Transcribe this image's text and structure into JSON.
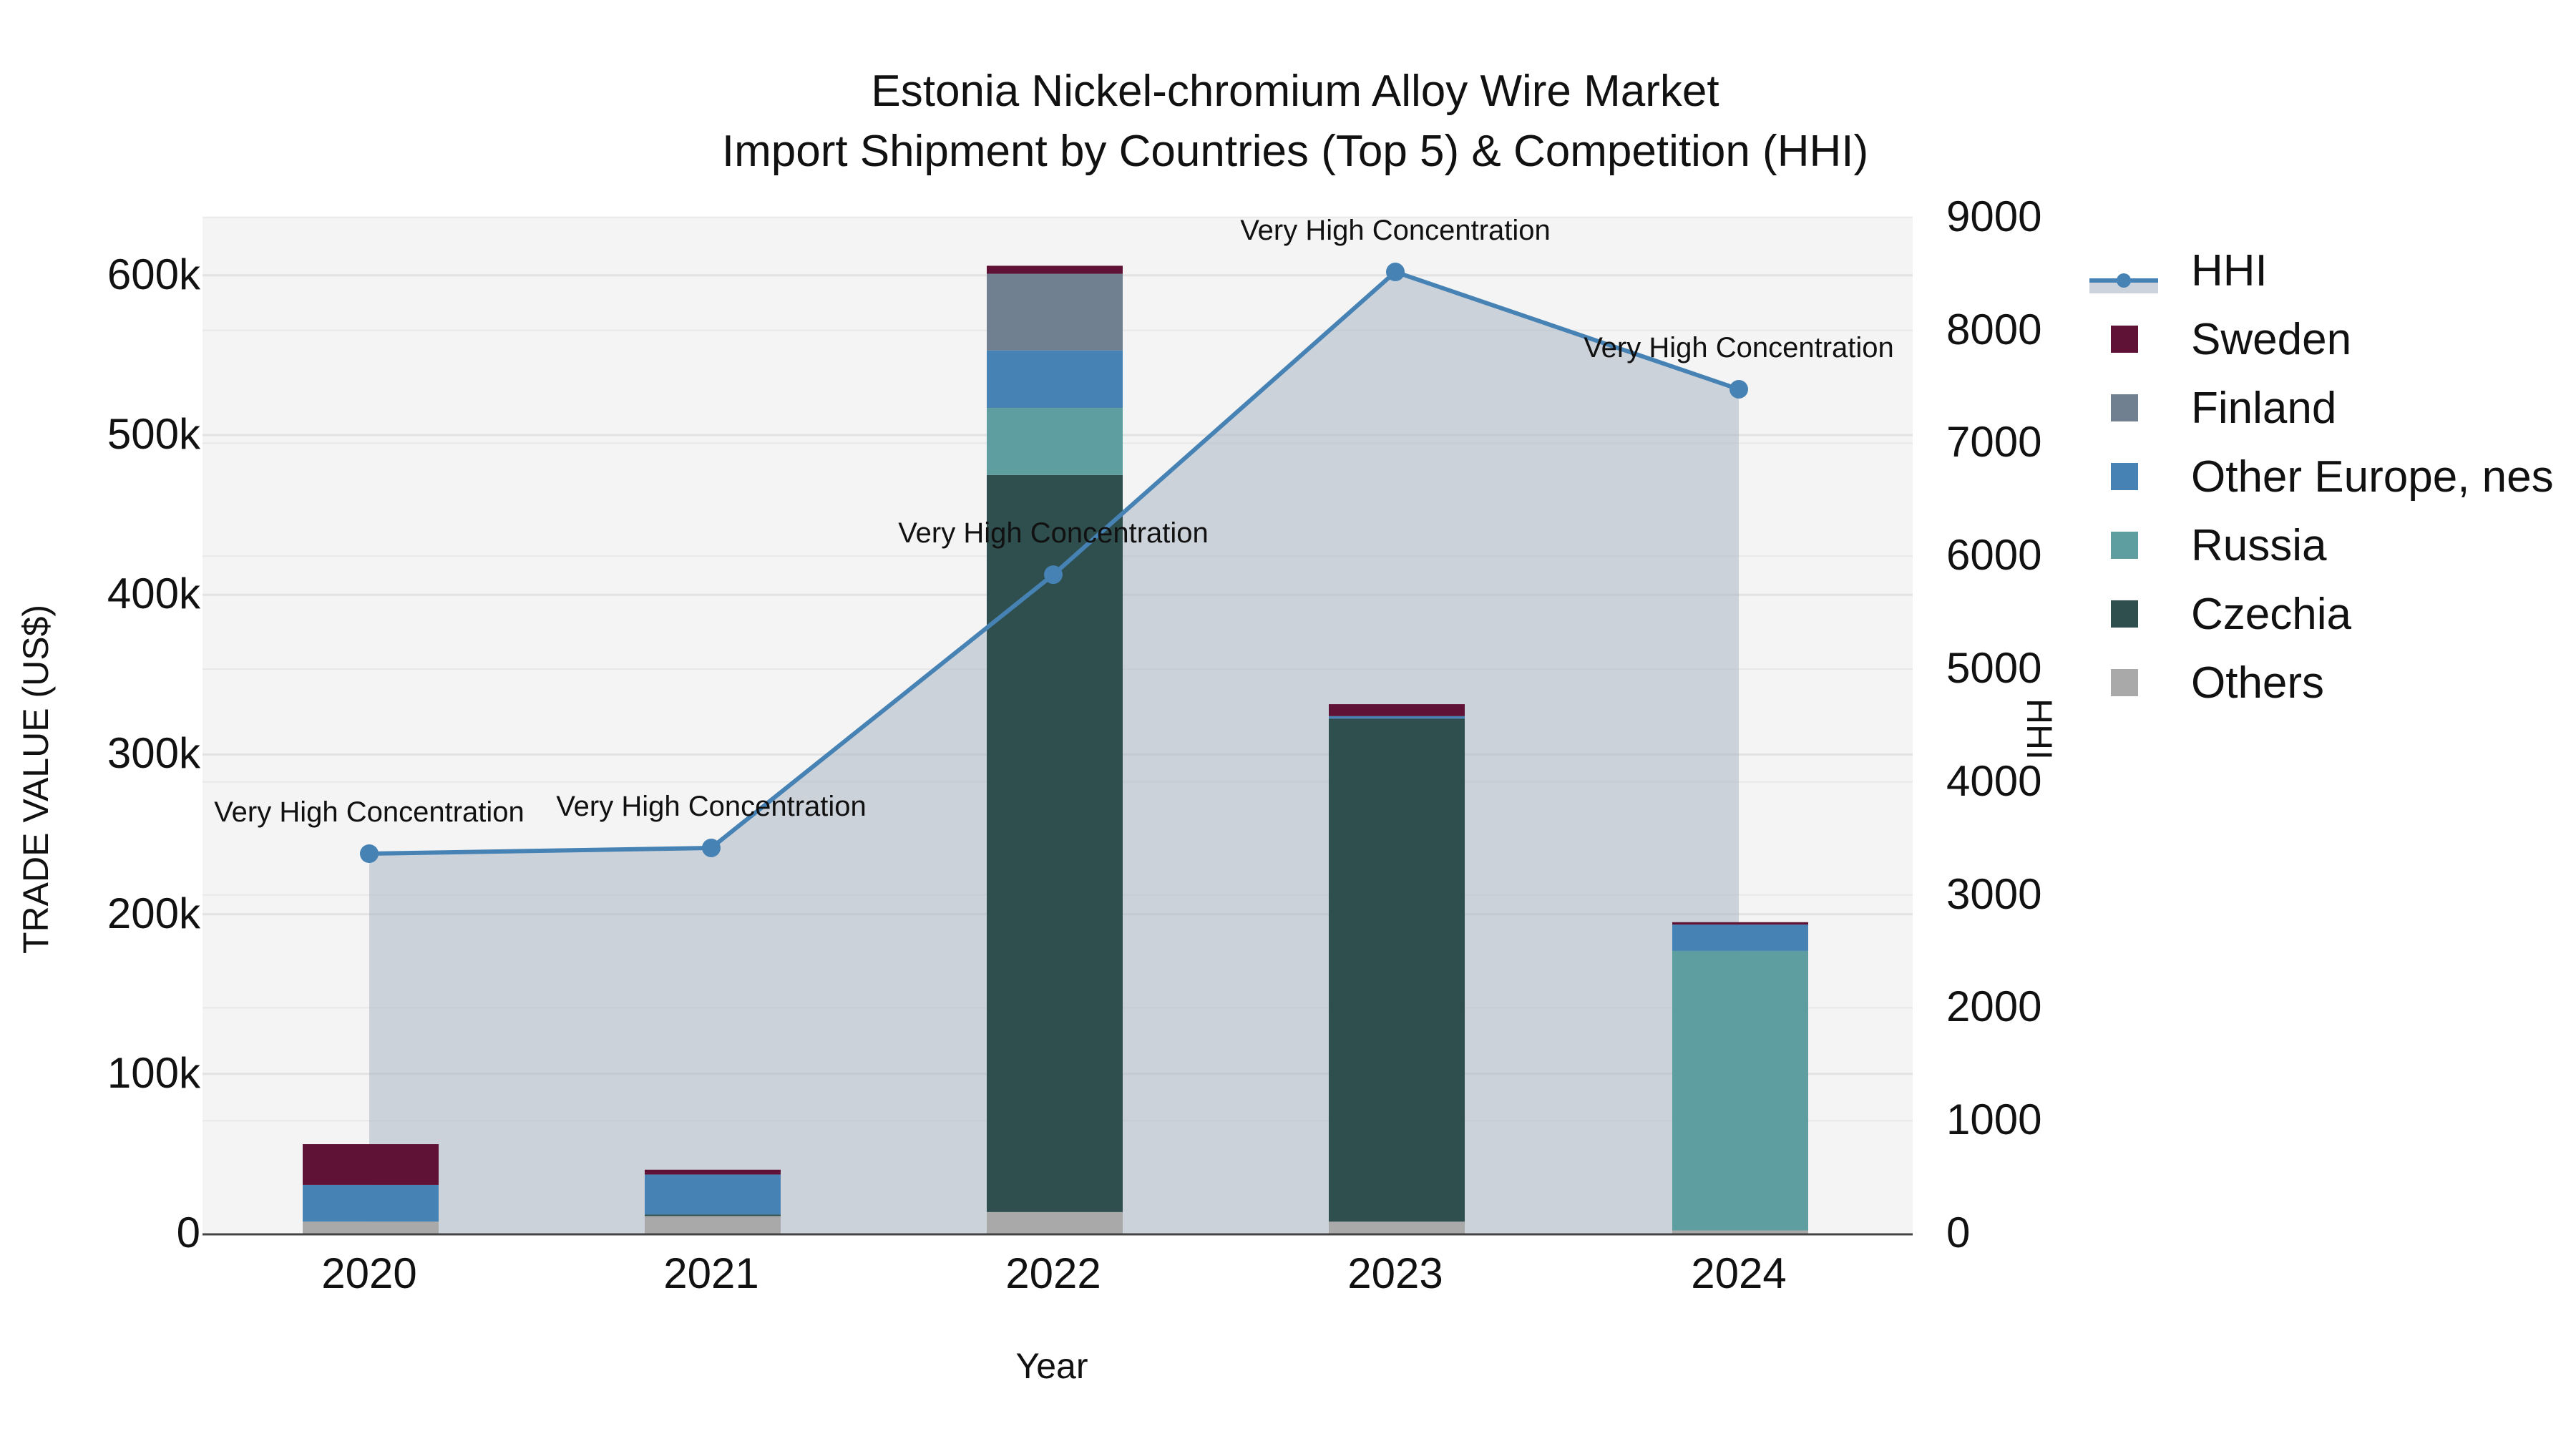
{
  "title": {
    "line1": "Estonia Nickel-chromium Alloy Wire Market",
    "line2": "Import Shipment by Countries (Top 5) & Competition (HHI)"
  },
  "axes": {
    "x_title": "Year",
    "y_title": "TRADE VALUE (US$)",
    "y2_title": "HHI",
    "y_ticks": [
      "0",
      "100k",
      "200k",
      "300k",
      "400k",
      "500k",
      "600k"
    ],
    "y2_ticks": [
      "0",
      "1000",
      "2000",
      "3000",
      "4000",
      "5000",
      "6000",
      "7000",
      "8000",
      "9000"
    ],
    "x_ticks": [
      "2020",
      "2021",
      "2022",
      "2023",
      "2024"
    ]
  },
  "legend": [
    {
      "label": "HHI",
      "type": "line",
      "color": "#4682b4"
    },
    {
      "label": "Sweden",
      "type": "bar",
      "color": "#601236"
    },
    {
      "label": "Finland",
      "type": "bar",
      "color": "#708090"
    },
    {
      "label": "Other Europe, nes",
      "type": "bar",
      "color": "#4682b4"
    },
    {
      "label": "Russia",
      "type": "bar",
      "color": "#5f9ea0"
    },
    {
      "label": "Czechia",
      "type": "bar",
      "color": "#2f4f4f"
    },
    {
      "label": "Others",
      "type": "bar",
      "color": "#a9a9a9"
    }
  ],
  "colors": {
    "plot_bg": "#f4f4f4",
    "grid": "#e2e2e2",
    "hhi_line": "#4682b4",
    "hhi_fill": "rgba(176,186,200,0.6)"
  },
  "chart_data": {
    "type": "bar",
    "title": "Estonia Nickel-chromium Alloy Wire Market — Import Shipment by Countries (Top 5) & Competition (HHI)",
    "xlabel": "Year",
    "ylabel": "TRADE VALUE (US$)",
    "y2label": "HHI",
    "ylim": [
      0,
      640000
    ],
    "y2lim": [
      0,
      9000
    ],
    "barmode": "stack",
    "grid": true,
    "legend_position": "right",
    "categories": [
      "2020",
      "2021",
      "2022",
      "2023",
      "2024"
    ],
    "series": [
      {
        "name": "Others",
        "color": "#a9a9a9",
        "values": [
          7500,
          11000,
          13500,
          7500,
          2000
        ]
      },
      {
        "name": "Czechia",
        "color": "#2f4f4f",
        "values": [
          0,
          1000,
          461500,
          315000,
          0
        ]
      },
      {
        "name": "Russia",
        "color": "#5f9ea0",
        "values": [
          0,
          0,
          42000,
          0,
          175000
        ]
      },
      {
        "name": "Other Europe, nes",
        "color": "#4682b4",
        "values": [
          23000,
          25000,
          36000,
          1500,
          16500
        ]
      },
      {
        "name": "Finland",
        "color": "#708090",
        "values": [
          0,
          0,
          48000,
          0,
          0
        ]
      },
      {
        "name": "Sweden",
        "color": "#601236",
        "values": [
          25500,
          3000,
          5000,
          7500,
          1500
        ]
      }
    ],
    "line_series": {
      "name": "HHI",
      "axis": "y2",
      "type": "area-line",
      "color": "#4682b4",
      "values": [
        3365,
        3416,
        5836,
        8517,
        7478
      ],
      "annotations": [
        "Very High Concentration",
        "Very High Concentration",
        "Very High Concentration",
        "Very High Concentration",
        "Very High Concentration"
      ]
    }
  }
}
